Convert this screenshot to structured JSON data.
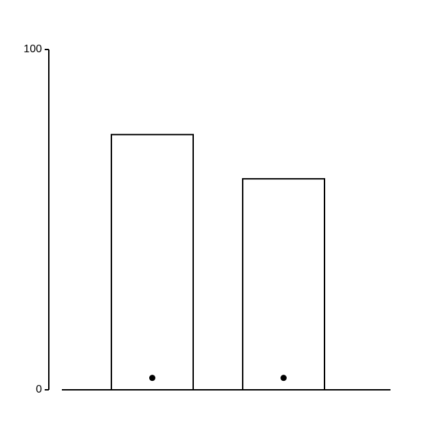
{
  "chart_data": {
    "type": "bar",
    "categories": [
      "",
      ""
    ],
    "values": [
      75,
      62
    ],
    "markers": [
      3.5,
      3.5
    ],
    "ylim": [
      0,
      100
    ],
    "yticks": [
      {
        "value": 0,
        "label": "0"
      },
      {
        "value": 100,
        "label": "100"
      }
    ],
    "title": "",
    "xlabel": "",
    "ylabel": "",
    "grid": false,
    "colors": {
      "bar_fill": "#ffffff",
      "bar_stroke": "#000000",
      "axis": "#000000",
      "marker": "#000000"
    }
  }
}
